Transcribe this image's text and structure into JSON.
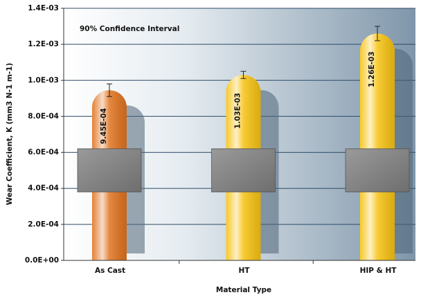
{
  "chart_data": {
    "type": "bar",
    "annotation": "90% Confidence Interval",
    "x_label": "Material Type",
    "y_label": "Wear Coefficient, K (mm3 N-1 m-1)",
    "categories": [
      "As Cast",
      "HT",
      "HIP & HT"
    ],
    "values": [
      0.000945,
      0.00103,
      0.00126
    ],
    "value_labels": [
      "9.45E-04",
      "1.03E-03",
      "1.26E-03"
    ],
    "errors": [
      3.5e-05,
      2e-05,
      4e-05
    ],
    "colors": [
      "#e0731f",
      "#f7c312",
      "#f7c312"
    ],
    "ylim": [
      0,
      0.0014
    ],
    "yticks": [
      {
        "value": 0,
        "label": "0.0E+00"
      },
      {
        "value": 0.0002,
        "label": "2.0E-04"
      },
      {
        "value": 0.0004,
        "label": "4.0E-04"
      },
      {
        "value": 0.0006,
        "label": "6.0E-04"
      },
      {
        "value": 0.0008,
        "label": "8.0E-04"
      },
      {
        "value": 0.001,
        "label": "1.0E-03"
      },
      {
        "value": 0.0012,
        "label": "1.2E-03"
      },
      {
        "value": 0.0014,
        "label": "1.4E-03"
      }
    ],
    "grid": true
  }
}
